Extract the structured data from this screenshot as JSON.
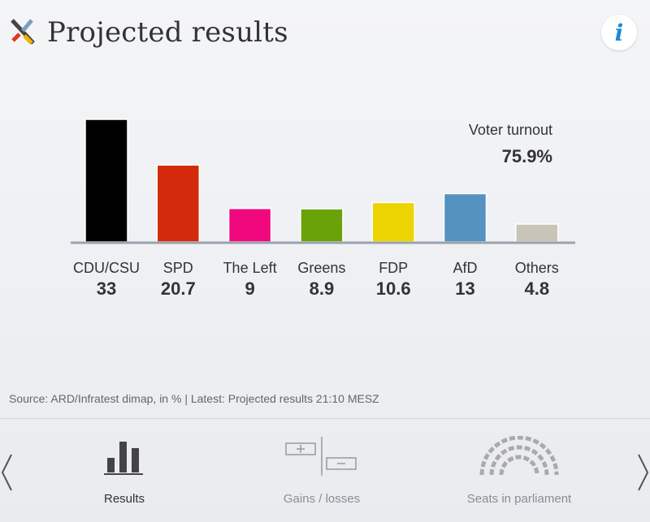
{
  "header": {
    "title": "Projected results",
    "info_icon": "info-icon"
  },
  "chart_data": {
    "type": "bar",
    "categories": [
      "CDU/CSU",
      "SPD",
      "The Left",
      "Greens",
      "FDP",
      "AfD",
      "Others"
    ],
    "values": [
      33,
      20.7,
      9,
      8.9,
      10.6,
      13,
      4.8
    ],
    "value_labels": [
      "33",
      "20.7",
      "9",
      "8.9",
      "10.6",
      "13",
      "4.8"
    ],
    "colors": [
      "#000000",
      "#d42a0c",
      "#f0087f",
      "#6aa20a",
      "#ecd402",
      "#5592bf",
      "#c9c4b8"
    ],
    "ylim": [
      0,
      35
    ]
  },
  "turnout": {
    "label": "Voter turnout",
    "value": "75.9%"
  },
  "source": "Source: ARD/Infratest dimap, in % | Latest: Projected results 21:10 MESZ",
  "nav": {
    "items": [
      {
        "label": "Results",
        "icon": "bar-chart-icon",
        "active": true
      },
      {
        "label": "Gains / losses",
        "icon": "gains-losses-icon",
        "active": false
      },
      {
        "label": "Seats in parliament",
        "icon": "parliament-seats-icon",
        "active": false
      }
    ],
    "prev_icon": "chevron-left-icon",
    "next_icon": "chevron-right-icon"
  }
}
